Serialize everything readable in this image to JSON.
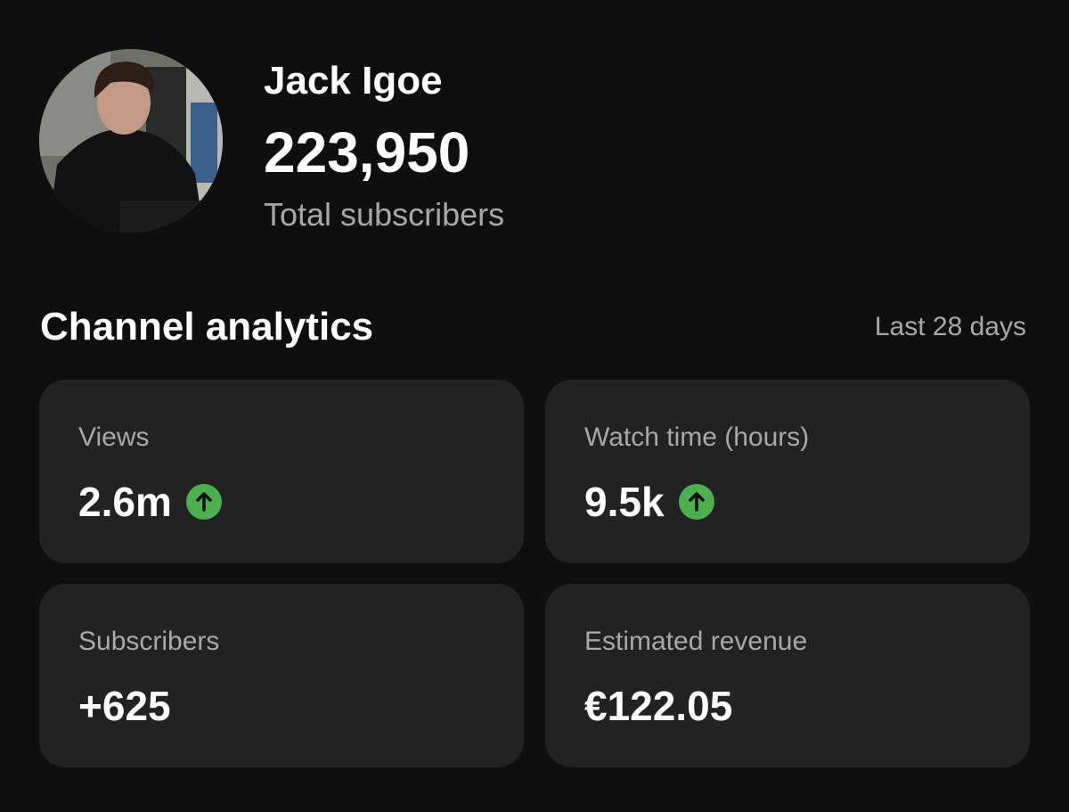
{
  "profile": {
    "name": "Jack Igoe",
    "subscriber_count": "223,950",
    "subscriber_label": "Total subscribers"
  },
  "analytics": {
    "title": "Channel analytics",
    "period": "Last 28 days",
    "cards": [
      {
        "label": "Views",
        "value": "2.6m",
        "trend": "up"
      },
      {
        "label": "Watch time (hours)",
        "value": "9.5k",
        "trend": "up"
      },
      {
        "label": "Subscribers",
        "value": "+625"
      },
      {
        "label": "Estimated revenue",
        "value": "€122.05"
      }
    ]
  }
}
